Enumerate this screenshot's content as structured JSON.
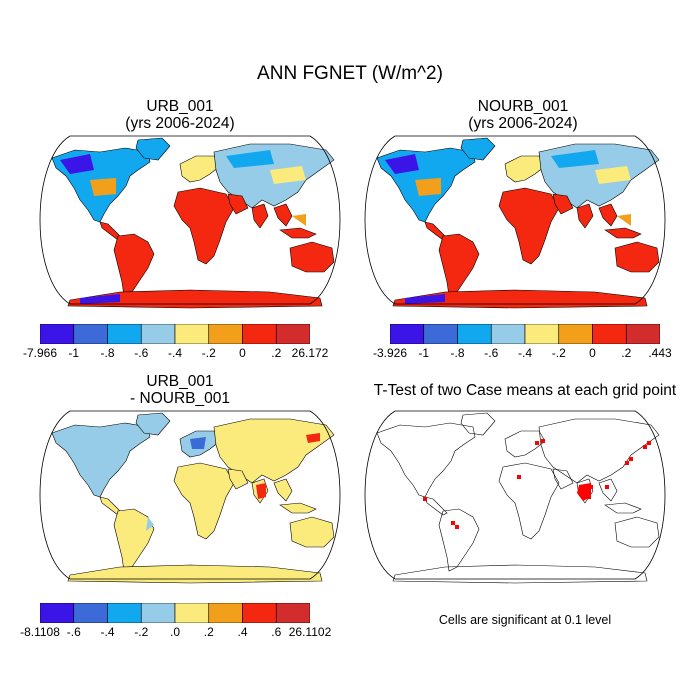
{
  "figure": {
    "title": "ANN FGNET (W/m^2)",
    "note": "Cells are significant at 0.1 level"
  },
  "colors": {
    "ocean": "#ffffff",
    "coast": "#000000",
    "significant": "#ff0000",
    "palette": [
      "#3b14e8",
      "#3c6ad8",
      "#12a8f0",
      "#96cce8",
      "#fbea7c",
      "#f2a01c",
      "#f42810",
      "#d22c2c"
    ]
  },
  "panels": [
    {
      "id": "urb",
      "title_line1": "URB_001",
      "title_line2": "(yrs 2006-2024)",
      "colorbar": {
        "labels": [
          "-7.966",
          "-1",
          "-.8",
          "-.6",
          "-.4",
          "-.2",
          "0",
          ".2",
          "26.172"
        ]
      },
      "land_color": "#f42810",
      "north_color": "#12a8f0",
      "europe_color": "#fbea7c",
      "antarctica_color": "#f42810",
      "asia_color": "#96cce8"
    },
    {
      "id": "nourb",
      "title_line1": "NOURB_001",
      "title_line2": "(yrs 2006-2024)",
      "colorbar": {
        "labels": [
          "-3.926",
          "-1",
          "-.8",
          "-.6",
          "-.4",
          "-.2",
          "0",
          ".2",
          ".443"
        ]
      },
      "land_color": "#f42810",
      "north_color": "#12a8f0",
      "europe_color": "#fbea7c",
      "antarctica_color": "#f42810",
      "asia_color": "#96cce8"
    },
    {
      "id": "diff",
      "title_line1": "URB_001",
      "title_line2": "- NOURB_001",
      "colorbar": {
        "labels": [
          "-8.1108",
          "-.6",
          "-.4",
          "-.2",
          ".0",
          ".2",
          ".4",
          ".6",
          "26.1102"
        ]
      },
      "land_color": "#fbea7c",
      "north_color": "#96cce8",
      "europe_color": "#96cce8",
      "antarctica_color": "#fbea7c",
      "asia_color": "#fbea7c"
    },
    {
      "id": "ttest",
      "title": "T-Test of two Case means at each grid point"
    }
  ],
  "chart_data": {
    "type": "heatmap",
    "title": "ANN FGNET (W/m^2)",
    "projection": "Robinson (global)",
    "panels": [
      {
        "name": "URB_001",
        "years": "2006-2024",
        "colorbar_levels": [
          "-7.966",
          "-1",
          "-.8",
          "-.6",
          "-.4",
          "-.2",
          "0",
          ".2",
          "26.172"
        ]
      },
      {
        "name": "NOURB_001",
        "years": "2006-2024",
        "colorbar_levels": [
          "-3.926",
          "-1",
          "-.8",
          "-.6",
          "-.4",
          "-.2",
          "0",
          ".2",
          ".443"
        ]
      },
      {
        "name": "URB_001 - NOURB_001",
        "colorbar_levels": [
          "-8.1108",
          "-.6",
          "-.4",
          "-.2",
          ".0",
          ".2",
          ".4",
          ".6",
          "26.1102"
        ]
      },
      {
        "name": "T-Test of two Case means at each grid point",
        "significance_level": 0.1
      }
    ]
  }
}
